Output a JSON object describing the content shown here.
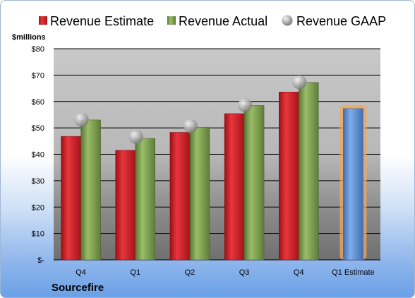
{
  "chart_data": {
    "type": "bar",
    "categories": [
      "Q4",
      "Q1",
      "Q2",
      "Q3",
      "Q4",
      "Q1 Estimate"
    ],
    "series": [
      {
        "name": "Revenue Estimate",
        "values": [
          46.8,
          41.5,
          48.3,
          55.4,
          63.6,
          null
        ]
      },
      {
        "name": "Revenue Actual",
        "values": [
          53.0,
          46.0,
          50.2,
          58.5,
          67.2,
          null
        ]
      },
      {
        "name": "Revenue GAAP",
        "values": [
          53.1,
          46.6,
          50.7,
          58.6,
          67.3,
          null
        ]
      },
      {
        "name": "",
        "values": [
          null,
          null,
          null,
          null,
          null,
          57.3
        ]
      }
    ],
    "ylabel": "$millions",
    "ylim": [
      0,
      80
    ],
    "yticks": [
      "$-",
      "$10",
      "$20",
      "$30",
      "$40",
      "$50",
      "$60",
      "$70",
      "$80"
    ],
    "ytick_values": [
      0,
      10,
      20,
      30,
      40,
      50,
      60,
      70,
      80
    ],
    "legend_position": "top",
    "grid": true,
    "company": "Sourcefire",
    "colors": {
      "estimate": "#d22027",
      "actual": "#7ea04d",
      "gaap": "#a6a6a6",
      "forecast": "#5b8ed6",
      "forecast_glow": "#f2a65a"
    }
  }
}
